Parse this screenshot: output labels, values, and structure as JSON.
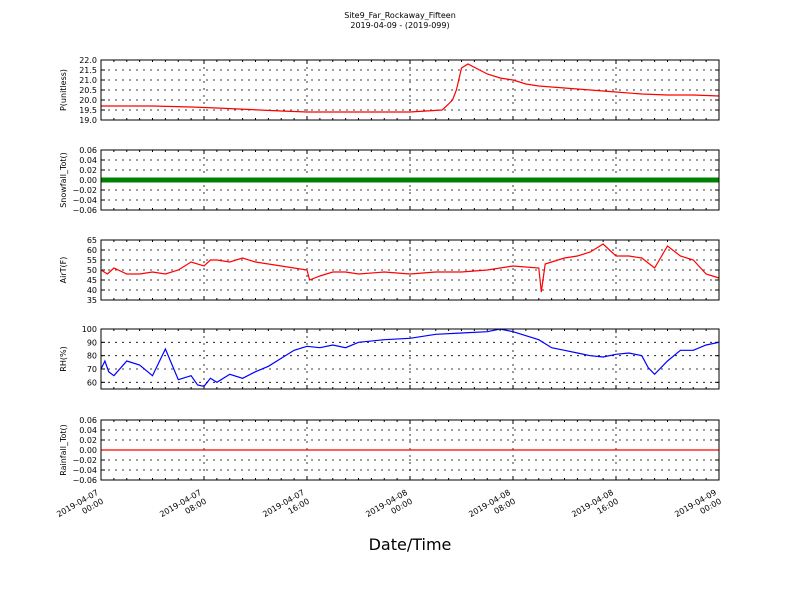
{
  "figure": {
    "title": "Site9_Far_Rockaway_Fifteen",
    "subtitle": "2019-04-09 - (2019-099)",
    "xlabel": "Date/Time"
  },
  "chart_data": [
    {
      "type": "line",
      "ylabel": "P(unitless)",
      "ylim": [
        19.0,
        22.0
      ],
      "yticks": [
        "19.0",
        "19.5",
        "20.0",
        "20.5",
        "21.0",
        "21.5",
        "22.0"
      ],
      "grid": true,
      "series": [
        {
          "color": "#ff0000",
          "x_hours": [
            0,
            4,
            7,
            9,
            14,
            16,
            18,
            24,
            26.5,
            27,
            27.3,
            27.6,
            28,
            28.5,
            30,
            31,
            32,
            33,
            34,
            36,
            38,
            40,
            42,
            44,
            46,
            48
          ],
          "values": [
            19.7,
            19.7,
            19.65,
            19.6,
            19.45,
            19.4,
            19.4,
            19.4,
            19.5,
            19.8,
            20.0,
            20.5,
            21.6,
            21.8,
            21.3,
            21.1,
            21.0,
            20.8,
            20.7,
            20.6,
            20.5,
            20.4,
            20.3,
            20.25,
            20.25,
            20.2
          ]
        }
      ]
    },
    {
      "type": "line",
      "ylabel": "Snowfall_Tot()",
      "ylim": [
        -0.06,
        0.06
      ],
      "yticks": [
        "−0.06",
        "−0.04",
        "−0.02",
        "0.00",
        "0.02",
        "0.04",
        "0.06"
      ],
      "grid": true,
      "series": [
        {
          "color": "#008000",
          "markers": true,
          "x_hours": [
            0,
            48
          ],
          "values": [
            0,
            0
          ]
        }
      ]
    },
    {
      "type": "line",
      "ylabel": "AirT(F)",
      "ylim": [
        35,
        65
      ],
      "yticks": [
        "35",
        "40",
        "45",
        "50",
        "55",
        "60",
        "65"
      ],
      "grid": true,
      "series": [
        {
          "color": "#ff0000",
          "x_hours": [
            0,
            0.5,
            1,
            2,
            3,
            4,
            5,
            6,
            7,
            8,
            8.5,
            9,
            10,
            11,
            12,
            14,
            16,
            16.2,
            17,
            18,
            19,
            20,
            22,
            24,
            26,
            28,
            30,
            32,
            34,
            34.2,
            34.5,
            35,
            36,
            37,
            38,
            39,
            40,
            41,
            42,
            43,
            44,
            45,
            46,
            47,
            48
          ],
          "values": [
            50,
            48,
            51,
            48,
            48,
            49,
            48,
            50,
            54,
            52,
            55,
            55,
            54,
            56,
            54,
            52,
            50,
            45,
            47,
            49,
            49,
            48,
            49,
            48,
            49,
            49,
            50,
            52,
            51,
            39,
            53,
            54,
            56,
            57,
            59,
            63,
            57,
            57,
            56,
            51,
            62,
            57,
            55,
            48,
            46
          ]
        }
      ]
    },
    {
      "type": "line",
      "ylabel": "RH(%)",
      "ylim": [
        55,
        100
      ],
      "yticks": [
        "60",
        "70",
        "80",
        "90",
        "100"
      ],
      "grid": true,
      "series": [
        {
          "color": "#0000ff",
          "x_hours": [
            0,
            0.3,
            0.6,
            1,
            2,
            3,
            4,
            5,
            6,
            7,
            7.5,
            8,
            8.5,
            9,
            10,
            11,
            12,
            13,
            14,
            15,
            16,
            17,
            18,
            19,
            20,
            22,
            24,
            26,
            28,
            30,
            31,
            32,
            33,
            34,
            35,
            36,
            37,
            38,
            39,
            40,
            41,
            42,
            42.5,
            43,
            44,
            45,
            46,
            47,
            48
          ],
          "values": [
            70,
            76,
            68,
            65,
            76,
            73,
            65,
            85,
            62,
            65,
            58,
            57,
            63,
            60,
            66,
            63,
            68,
            72,
            78,
            84,
            87,
            86,
            88,
            86,
            90,
            92,
            93,
            96,
            97,
            98,
            100,
            98,
            95,
            92,
            86,
            84,
            82,
            80,
            79,
            81,
            82,
            80,
            71,
            66,
            76,
            84,
            84,
            88,
            90
          ]
        }
      ]
    },
    {
      "type": "line",
      "ylabel": "Rainfall_Tot()",
      "ylim": [
        -0.06,
        0.06
      ],
      "yticks": [
        "−0.06",
        "−0.04",
        "−0.02",
        "0.00",
        "0.02",
        "0.04",
        "0.06"
      ],
      "grid": true,
      "series": [
        {
          "color": "#ff0000",
          "x_hours": [
            0,
            48
          ],
          "values": [
            0,
            0
          ]
        }
      ]
    }
  ],
  "x_axis": {
    "range_hours": [
      0,
      48
    ],
    "ticks": [
      {
        "h": 0,
        "line1": "2019-04-07",
        "line2": "00:00"
      },
      {
        "h": 8,
        "line1": "2019-04-07",
        "line2": "08:00"
      },
      {
        "h": 16,
        "line1": "2019-04-07",
        "line2": "16:00"
      },
      {
        "h": 24,
        "line1": "2019-04-08",
        "line2": "00:00"
      },
      {
        "h": 32,
        "line1": "2019-04-08",
        "line2": "08:00"
      },
      {
        "h": 40,
        "line1": "2019-04-08",
        "line2": "16:00"
      },
      {
        "h": 48,
        "line1": "2019-04-09",
        "line2": "00:00"
      }
    ]
  }
}
